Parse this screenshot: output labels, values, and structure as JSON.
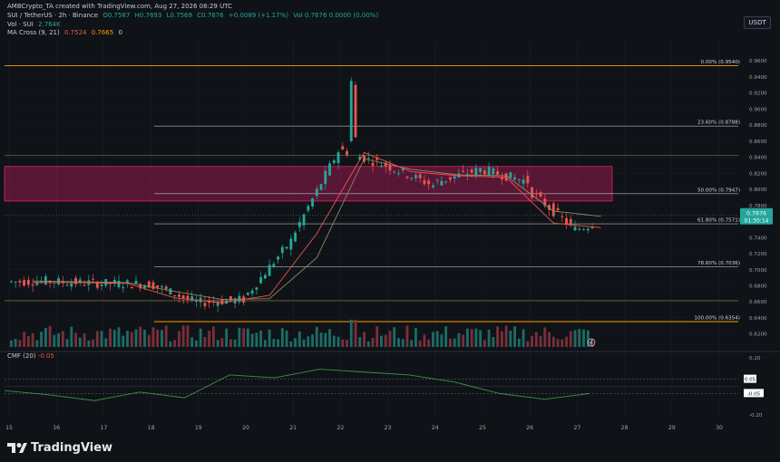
{
  "header": {
    "attribution": "AMBCrypto_TA created with TradingView.com, Aug 27, 2026 08:29 UTC",
    "symbol_line": "SUI / TetherUS · 2h · Binance",
    "ohlc_o": "O0.7587",
    "ohlc_h": "H0.7693",
    "ohlc_l": "L0.7569",
    "ohlc_c": "C0.7676",
    "ohlc_change": "+0.0089 (+1.17%)",
    "vol_right": "Vol 0.7676  0.0000 (0.00%)",
    "vol_line_label": "Vol · SUI",
    "vol_line_value": "2.764K",
    "ma_label": "MA Cross (9, 21)",
    "ma_fast": "0.7524",
    "ma_slow": "0.7665",
    "ma_extra": "0"
  },
  "currency_badge": "USDT",
  "cmf": {
    "label": "CMF (20)",
    "value": "-0.05"
  },
  "brand": "TradingView",
  "colors": {
    "background": "#0f1317",
    "up": "#26a69a",
    "down": "#ef5350",
    "fib_line": "#c8cdd4",
    "fib_extreme": "#ff9800",
    "zone": "#e91e63",
    "ma_fast": "#ef5350",
    "ma_slow": "#8b8b62",
    "cmf_line": "#4caf50"
  },
  "chart_data": [
    {
      "type": "candlestick",
      "title": "SUI / TetherUS · 2h · Binance",
      "ylim": [
        0.605,
        0.985
      ],
      "x_dates": [
        "15",
        "16",
        "17",
        "18",
        "19",
        "20",
        "21",
        "22",
        "23",
        "24",
        "25",
        "26",
        "27",
        "28",
        "29",
        "30"
      ],
      "y_ticks": [
        "0.9600",
        "0.9400",
        "0.9200",
        "0.9000",
        "0.8800",
        "0.8600",
        "0.8400",
        "0.8200",
        "0.8000",
        "0.7800",
        "0.7600",
        "0.7400",
        "0.7200",
        "0.7000",
        "0.6800",
        "0.6600",
        "0.6400",
        "0.6200"
      ],
      "fib_levels": [
        {
          "label": "0.00% (0.9540)",
          "value": 0.954
        },
        {
          "label": "23.60% (0.8788)",
          "value": 0.8788
        },
        {
          "label": "50.00% (0.7947)",
          "value": 0.7947
        },
        {
          "label": "61.80% (0.7571)",
          "value": 0.7571
        },
        {
          "label": "78.60% (0.7036)",
          "value": 0.7036
        },
        {
          "label": "100.00% (0.6354)",
          "value": 0.6354
        }
      ],
      "horizontal_lines": [
        0.8425,
        0.6615
      ],
      "zone": {
        "from": 0.7855,
        "to": 0.8285
      },
      "price_badge": {
        "value": "0.7676",
        "countdown": "01:30:14"
      },
      "candle_summary": [
        {
          "date": "15",
          "open": 0.685,
          "close": 0.686
        },
        {
          "date": "16",
          "open": 0.685,
          "close": 0.683
        },
        {
          "date": "17",
          "open": 0.683,
          "close": 0.682
        },
        {
          "date": "18",
          "open": 0.683,
          "close": 0.659
        },
        {
          "date": "19",
          "open": 0.659,
          "close": 0.663
        },
        {
          "date": "20",
          "open": 0.664,
          "close": 0.736
        },
        {
          "date": "21",
          "open": 0.738,
          "close": 0.848
        },
        {
          "date": "22",
          "open": 0.85,
          "close": 0.83
        },
        {
          "date": "23",
          "open": 0.83,
          "close": 0.805
        },
        {
          "date": "24",
          "open": 0.808,
          "close": 0.825
        },
        {
          "date": "25",
          "open": 0.825,
          "close": 0.81
        },
        {
          "date": "26",
          "open": 0.8,
          "close": 0.75
        },
        {
          "date": "27",
          "open": 0.75,
          "close": 0.7676
        }
      ],
      "ma_fast_series": [
        0.684,
        0.684,
        0.683,
        0.665,
        0.659,
        0.668,
        0.745,
        0.846,
        0.822,
        0.817,
        0.815,
        0.758,
        0.7524
      ],
      "ma_slow_series": [
        0.686,
        0.685,
        0.684,
        0.673,
        0.663,
        0.664,
        0.715,
        0.838,
        0.825,
        0.818,
        0.817,
        0.773,
        0.7665
      ]
    },
    {
      "type": "line",
      "title": "CMF (20)",
      "ylim": [
        -0.2,
        0.2
      ],
      "y_ticks": [
        "0.20",
        "0.05",
        "-0.05",
        "-0.20"
      ],
      "series": [
        {
          "name": "CMF (20)",
          "values": [
            -0.03,
            -0.06,
            -0.1,
            -0.04,
            -0.08,
            0.08,
            0.06,
            0.12,
            0.1,
            0.08,
            0.03,
            -0.05,
            -0.09,
            -0.05
          ]
        }
      ]
    }
  ]
}
